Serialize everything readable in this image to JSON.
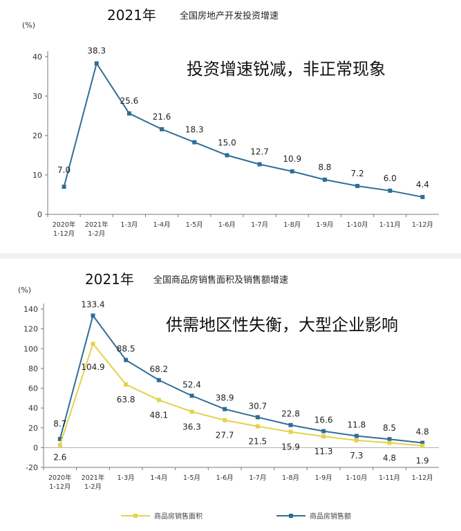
{
  "charts": [
    {
      "year_label": "2021年",
      "title": "全国房地产开发投资增速",
      "annotation": "投资增速锐减，非正常现象",
      "unit": "(%)"
    },
    {
      "year_label": "2021年",
      "title": "全国商品房销售面积及销售额增速",
      "annotation": "供需地区性失衡，大型企业影响",
      "unit": "(%)"
    }
  ],
  "colors": {
    "blue": "#2f6d95",
    "yellow": "#e4d24a",
    "axis": "#777777",
    "grid": "#dddddd"
  },
  "chart_data": [
    {
      "type": "line",
      "title": "全国房地产开发投资增速",
      "ylabel": "(%)",
      "ylim": [
        0,
        40
      ],
      "yticks": [
        0,
        10,
        20,
        30,
        40
      ],
      "grid": false,
      "categories": [
        "2020年 1-12月",
        "2021年 1-2月",
        "1-3月",
        "1-4月",
        "1-5月",
        "1-6月",
        "1-7月",
        "1-8月",
        "1-9月",
        "1-10月",
        "1-11月",
        "1-12月"
      ],
      "series": [
        {
          "name": "",
          "color": "#2f6d95",
          "values": [
            7.0,
            38.3,
            25.6,
            21.6,
            18.3,
            15.0,
            12.7,
            10.9,
            8.8,
            7.2,
            6.0,
            4.4
          ],
          "labels": [
            "7.0",
            "38.3",
            "25.6",
            "21.6",
            "18.3",
            "15.0",
            "12.7",
            "10.9",
            "8.8",
            "7.2",
            "6.0",
            "4.4"
          ]
        }
      ]
    },
    {
      "type": "line",
      "title": "全国商品房销售面积及销售额增速",
      "ylabel": "(%)",
      "ylim": [
        -20,
        140
      ],
      "yticks": [
        -20,
        0,
        20,
        40,
        60,
        80,
        100,
        120,
        140
      ],
      "grid": false,
      "legend": "bottom",
      "categories": [
        "2020年 1-12月",
        "2021年 1-2月",
        "1-3月",
        "1-4月",
        "1-5月",
        "1-6月",
        "1-7月",
        "1-8月",
        "1-9月",
        "1-10月",
        "1-11月",
        "1-12月"
      ],
      "series": [
        {
          "name": "商品房销售额",
          "color": "#2f6d95",
          "values": [
            8.7,
            133.4,
            88.5,
            68.2,
            52.4,
            38.9,
            30.7,
            22.8,
            16.6,
            11.8,
            8.5,
            4.8
          ],
          "labels": [
            "8.7",
            "133.4",
            "88.5",
            "68.2",
            "52.4",
            "38.9",
            "30.7",
            "22.8",
            "16.6",
            "11.8",
            "8.5",
            "4.8"
          ]
        },
        {
          "name": "商品房销售面积",
          "color": "#e4d24a",
          "values": [
            2.6,
            104.9,
            63.8,
            48.1,
            36.3,
            27.7,
            21.5,
            15.9,
            11.3,
            7.3,
            4.8,
            1.9
          ],
          "labels": [
            "2.6",
            "104.9",
            "63.8",
            "48.1",
            "36.3",
            "27.7",
            "21.5",
            "15.9",
            "11.3",
            "7.3",
            "4.8",
            "1.9"
          ]
        }
      ]
    }
  ]
}
